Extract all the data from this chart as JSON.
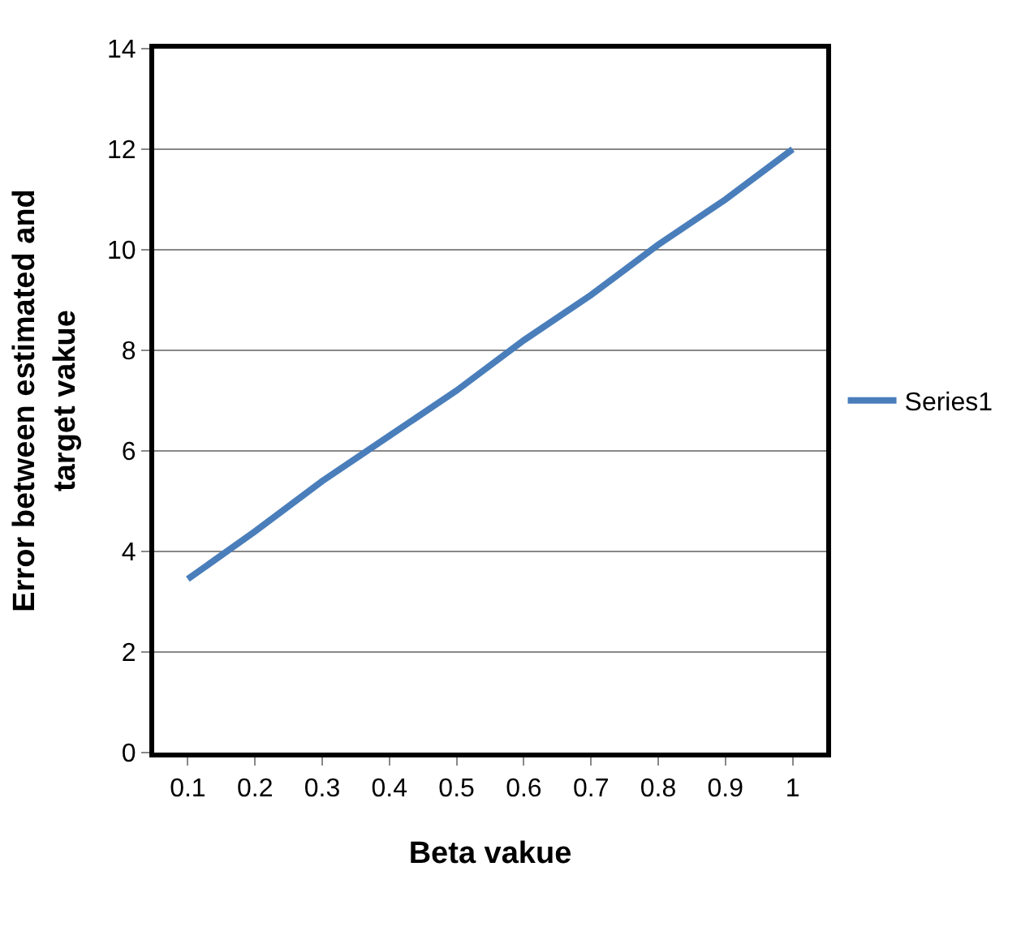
{
  "chart_data": {
    "type": "line",
    "xlabel": "Beta vakue",
    "ylabel": "Error between estimated and target vakue",
    "categories": [
      "0.1",
      "0.2",
      "0.3",
      "0.4",
      "0.5",
      "0.6",
      "0.7",
      "0.8",
      "0.9",
      "1"
    ],
    "series": [
      {
        "name": "Series1",
        "color": "#4a7ebb",
        "values": [
          3.45,
          4.4,
          5.4,
          6.3,
          7.2,
          8.2,
          9.1,
          10.1,
          11.0,
          12.0
        ]
      }
    ],
    "ylim": [
      0,
      14
    ],
    "yticks": [
      0,
      2,
      4,
      6,
      8,
      10,
      12,
      14
    ],
    "grid": "y",
    "legend": "right",
    "marker": "none",
    "line_style": "solid"
  }
}
